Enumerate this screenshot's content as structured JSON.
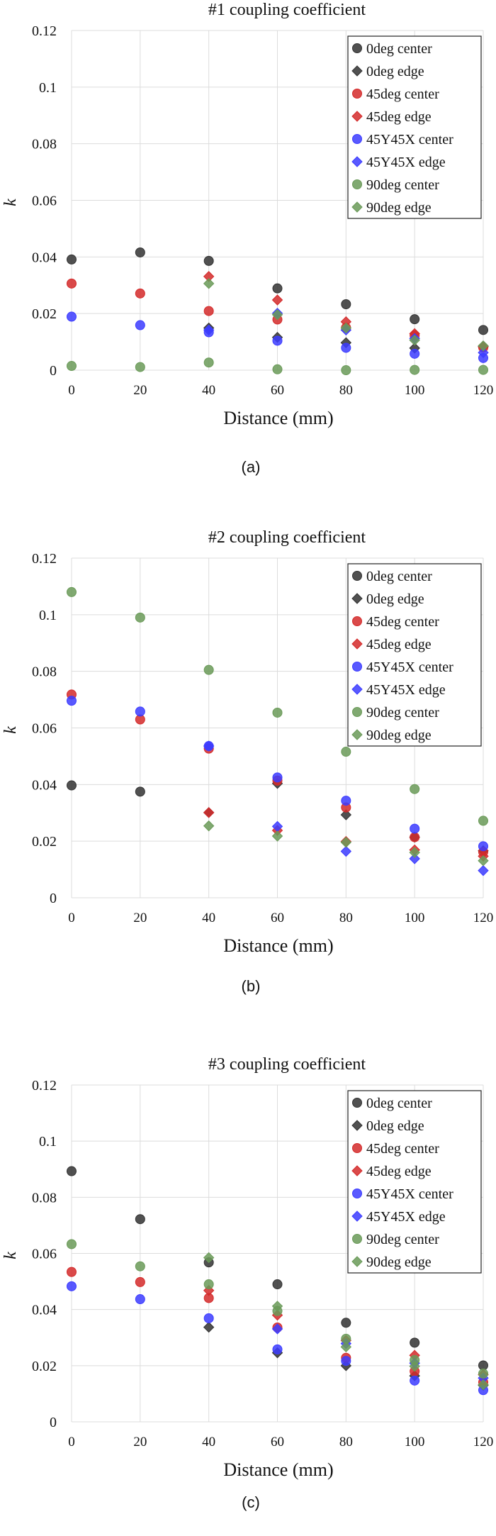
{
  "chart_data": [
    {
      "type": "scatter",
      "title": "#1 coupling coefficient",
      "xlabel": "Distance (mm)",
      "ylabel": "k",
      "caption": "(a)",
      "xlim": [
        0,
        120
      ],
      "ylim": [
        0,
        0.12
      ],
      "xticks": [
        "0",
        "20",
        "40",
        "60",
        "80",
        "100",
        "120"
      ],
      "yticks": [
        "0",
        "0.02",
        "0.04",
        "0.06",
        "0.08",
        "0.1",
        "0.12"
      ],
      "grid": true,
      "legend": "top-right",
      "series": [
        {
          "name": "0deg center",
          "marker": "circle",
          "color": "#333333",
          "x": [
            0,
            20,
            40,
            60,
            80,
            100,
            120
          ],
          "y": [
            0.0391,
            0.0416,
            0.0386,
            0.0289,
            0.0233,
            0.018,
            0.0142
          ]
        },
        {
          "name": "0deg edge",
          "marker": "diamond",
          "color": "#333333",
          "x": [
            40,
            60,
            80,
            100,
            120
          ],
          "y": [
            0.0149,
            0.0116,
            0.0097,
            0.0078,
            0.0084
          ]
        },
        {
          "name": "45deg center",
          "marker": "circle",
          "color": "#d42a2a",
          "x": [
            0,
            20,
            40,
            60,
            80,
            100,
            120
          ],
          "y": [
            0.0306,
            0.0271,
            0.0209,
            0.0179,
            0.015,
            0.0123,
            0.008
          ]
        },
        {
          "name": "45deg edge",
          "marker": "diamond",
          "color": "#d42a2a",
          "x": [
            40,
            60,
            80,
            100,
            120
          ],
          "y": [
            0.0331,
            0.0248,
            0.0171,
            0.0129,
            0.0082
          ]
        },
        {
          "name": "45Y45X center",
          "marker": "circle",
          "color": "#3c3cff",
          "x": [
            0,
            20,
            40,
            60,
            80,
            100,
            120
          ],
          "y": [
            0.0189,
            0.0159,
            0.0134,
            0.0104,
            0.0079,
            0.0058,
            0.0043
          ]
        },
        {
          "name": "45Y45X edge",
          "marker": "diamond",
          "color": "#3c3cff",
          "x": [
            40,
            60,
            80,
            100,
            120
          ],
          "y": [
            0.0142,
            0.0201,
            0.0142,
            0.0112,
            0.0062
          ]
        },
        {
          "name": "90deg center",
          "marker": "circle",
          "color": "#6a9a58",
          "x": [
            0,
            20,
            40,
            60,
            80,
            100,
            120
          ],
          "y": [
            0.0015,
            0.0011,
            0.0027,
            0.0003,
            0.0,
            0.0001,
            0.0001
          ]
        },
        {
          "name": "90deg edge",
          "marker": "diamond",
          "color": "#6a9a58",
          "x": [
            40,
            60,
            80,
            100,
            120
          ],
          "y": [
            0.0306,
            0.0196,
            0.0149,
            0.0106,
            0.0086
          ]
        }
      ]
    },
    {
      "type": "scatter",
      "title": "#2 coupling coefficient",
      "xlabel": "Distance (mm)",
      "ylabel": "k",
      "caption": "(b)",
      "xlim": [
        0,
        120
      ],
      "ylim": [
        0,
        0.12
      ],
      "xticks": [
        "0",
        "20",
        "40",
        "60",
        "80",
        "100",
        "120"
      ],
      "yticks": [
        "0",
        "0.02",
        "0.04",
        "0.06",
        "0.08",
        "0.1",
        "0.12"
      ],
      "grid": true,
      "legend": "top-right",
      "series": [
        {
          "name": "0deg center",
          "marker": "circle",
          "color": "#333333",
          "x": [
            0,
            20
          ],
          "y": [
            0.0397,
            0.0375
          ]
        },
        {
          "name": "0deg edge",
          "marker": "diamond",
          "color": "#333333",
          "x": [
            40,
            60,
            80,
            100,
            120
          ],
          "y": [
            0.0301,
            0.0404,
            0.0293,
            0.0214,
            0.0166
          ]
        },
        {
          "name": "45deg center",
          "marker": "circle",
          "color": "#d42a2a",
          "x": [
            0,
            20,
            40,
            60,
            80,
            100,
            120
          ],
          "y": [
            0.0718,
            0.063,
            0.0527,
            0.0414,
            0.0319,
            0.0214,
            0.0162
          ]
        },
        {
          "name": "45deg edge",
          "marker": "diamond",
          "color": "#d42a2a",
          "x": [
            40,
            60,
            80,
            100,
            120
          ],
          "y": [
            0.0301,
            0.0238,
            0.0199,
            0.0169,
            0.0147
          ]
        },
        {
          "name": "45Y45X center",
          "marker": "circle",
          "color": "#3c3cff",
          "x": [
            0,
            20,
            40,
            60,
            80,
            100,
            120
          ],
          "y": [
            0.0696,
            0.0658,
            0.0536,
            0.0425,
            0.0343,
            0.0244,
            0.0182
          ]
        },
        {
          "name": "45Y45X edge",
          "marker": "diamond",
          "color": "#3c3cff",
          "x": [
            40,
            60,
            80,
            100,
            120
          ],
          "y": [
            0.0536,
            0.0252,
            0.0164,
            0.0138,
            0.0096
          ]
        },
        {
          "name": "90deg center",
          "marker": "circle",
          "color": "#6a9a58",
          "x": [
            0,
            20,
            40,
            60,
            80,
            100,
            120
          ],
          "y": [
            0.108,
            0.099,
            0.0805,
            0.0654,
            0.0516,
            0.0384,
            0.0272
          ]
        },
        {
          "name": "90deg edge",
          "marker": "diamond",
          "color": "#6a9a58",
          "x": [
            40,
            60,
            80,
            100,
            120
          ],
          "y": [
            0.0254,
            0.0218,
            0.0196,
            0.016,
            0.0131
          ]
        }
      ]
    },
    {
      "type": "scatter",
      "title": "#3 coupling coefficient",
      "xlabel": "Distance (mm)",
      "ylabel": "k",
      "caption": "(c)",
      "xlim": [
        0,
        120
      ],
      "ylim": [
        0,
        0.12
      ],
      "xticks": [
        "0",
        "20",
        "40",
        "60",
        "80",
        "100",
        "120"
      ],
      "yticks": [
        "0",
        "0.02",
        "0.04",
        "0.06",
        "0.08",
        "0.1",
        "0.12"
      ],
      "grid": true,
      "legend": "top-right",
      "series": [
        {
          "name": "0deg center",
          "marker": "circle",
          "color": "#333333",
          "x": [
            0,
            20,
            40,
            60,
            80,
            100,
            120
          ],
          "y": [
            0.0893,
            0.0722,
            0.0568,
            0.049,
            0.0353,
            0.0282,
            0.0201
          ]
        },
        {
          "name": "0deg edge",
          "marker": "diamond",
          "color": "#333333",
          "x": [
            40,
            60,
            80,
            100,
            120
          ],
          "y": [
            0.0337,
            0.0246,
            0.02,
            0.0164,
            0.013
          ]
        },
        {
          "name": "45deg center",
          "marker": "circle",
          "color": "#d42a2a",
          "x": [
            0,
            20,
            40,
            60,
            80,
            100,
            120
          ],
          "y": [
            0.0534,
            0.0498,
            0.0441,
            0.0336,
            0.0228,
            0.018,
            0.0141
          ]
        },
        {
          "name": "45deg edge",
          "marker": "diamond",
          "color": "#d42a2a",
          "x": [
            40,
            60,
            80,
            100,
            120
          ],
          "y": [
            0.0468,
            0.038,
            0.029,
            0.0237,
            0.0168
          ]
        },
        {
          "name": "45Y45X center",
          "marker": "circle",
          "color": "#3c3cff",
          "x": [
            0,
            20,
            40,
            60,
            80,
            100,
            120
          ],
          "y": [
            0.0483,
            0.0437,
            0.0369,
            0.0258,
            0.0217,
            0.0147,
            0.0113
          ]
        },
        {
          "name": "45Y45X edge",
          "marker": "diamond",
          "color": "#3c3cff",
          "x": [
            60,
            80,
            100,
            120
          ],
          "y": [
            0.0331,
            0.0279,
            0.0209,
            0.0156
          ]
        },
        {
          "name": "90deg center",
          "marker": "circle",
          "color": "#6a9a58",
          "x": [
            0,
            20,
            40,
            60,
            80,
            100,
            120
          ],
          "y": [
            0.0633,
            0.0554,
            0.049,
            0.0395,
            0.0296,
            0.022,
            0.0172
          ]
        },
        {
          "name": "90deg edge",
          "marker": "diamond",
          "color": "#6a9a58",
          "x": [
            40,
            60,
            80,
            100,
            120
          ],
          "y": [
            0.0585,
            0.0412,
            0.0267,
            0.0198,
            0.0132
          ]
        }
      ]
    }
  ]
}
